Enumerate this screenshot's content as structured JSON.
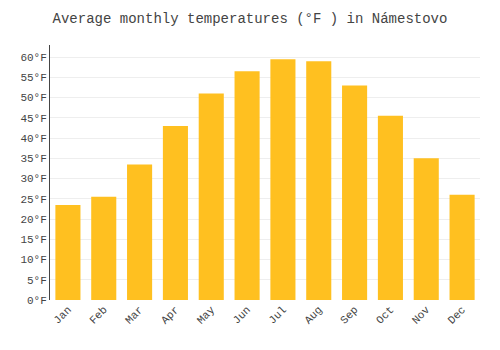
{
  "chart_data": {
    "type": "bar",
    "title": "Average monthly temperatures (°F ) in Námestovo",
    "categories": [
      "Jan",
      "Feb",
      "Mar",
      "Apr",
      "May",
      "Jun",
      "Jul",
      "Aug",
      "Sep",
      "Oct",
      "Nov",
      "Dec"
    ],
    "values": [
      23.5,
      25.5,
      33.5,
      43,
      51,
      56.5,
      59.5,
      59,
      53,
      45.5,
      35,
      26
    ],
    "color": "#FFC020",
    "ylim": [
      0,
      63
    ],
    "yticks": [
      {
        "value": 0,
        "label": "0°F"
      },
      {
        "value": 5,
        "label": "5°F"
      },
      {
        "value": 10,
        "label": "10°F"
      },
      {
        "value": 15,
        "label": "15°F"
      },
      {
        "value": 20,
        "label": "20°F"
      },
      {
        "value": 25,
        "label": "25°F"
      },
      {
        "value": 30,
        "label": "30°F"
      },
      {
        "value": 35,
        "label": "35°F"
      },
      {
        "value": 40,
        "label": "40°F"
      },
      {
        "value": 45,
        "label": "45°F"
      },
      {
        "value": 50,
        "label": "50°F"
      },
      {
        "value": 55,
        "label": "55°F"
      },
      {
        "value": 60,
        "label": "60°F"
      }
    ],
    "grid": true
  }
}
